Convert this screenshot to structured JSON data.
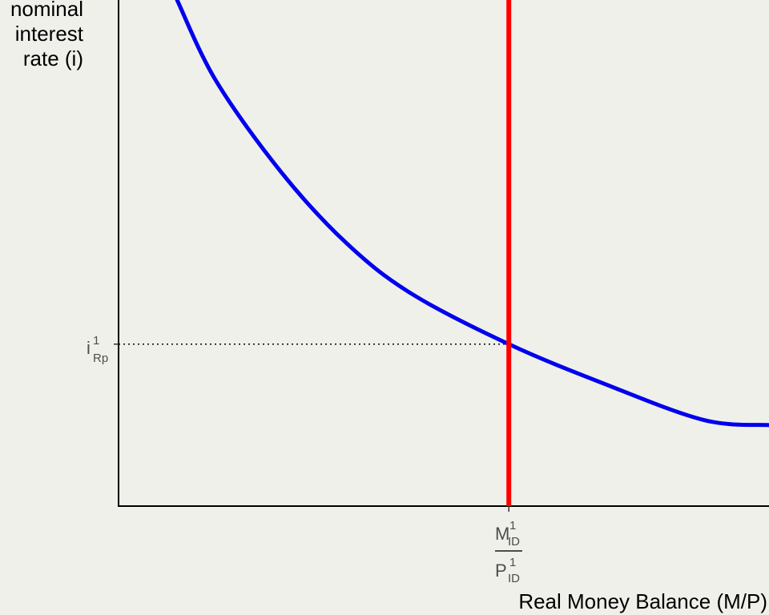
{
  "chart_data": {
    "type": "line",
    "title": "",
    "ylabel": "nominal interest rate (i)",
    "xlabel": "Real Money Balance (M/P)",
    "colors": {
      "demand": "#0000ee",
      "supply": "#ff0000",
      "guide": "#000000"
    },
    "series": [
      {
        "kind": "money-demand",
        "color": "#0000ee",
        "x": [
          0.09,
          0.15,
          0.25,
          0.35,
          0.45,
          0.6,
          0.75,
          0.9,
          1.0
        ],
        "y": [
          1.0,
          0.84,
          0.66,
          0.52,
          0.42,
          0.32,
          0.24,
          0.17,
          0.16
        ]
      },
      {
        "kind": "money-supply",
        "color": "#ff0000",
        "x": [
          0.6,
          0.6
        ],
        "y": [
          0.0,
          1.02
        ]
      }
    ],
    "equilibrium": {
      "x": 0.6,
      "y": 0.32
    },
    "xlim": [
      0,
      1
    ],
    "ylim": [
      0,
      1
    ],
    "grid": false,
    "y_tick": {
      "base": "i",
      "sup": "1",
      "sub": "Rp"
    },
    "x_tick": {
      "numerator": {
        "base": "M",
        "sup": "1",
        "sub": "ID"
      },
      "denominator": {
        "base": "P",
        "sup": "1",
        "sub": "ID"
      }
    }
  }
}
